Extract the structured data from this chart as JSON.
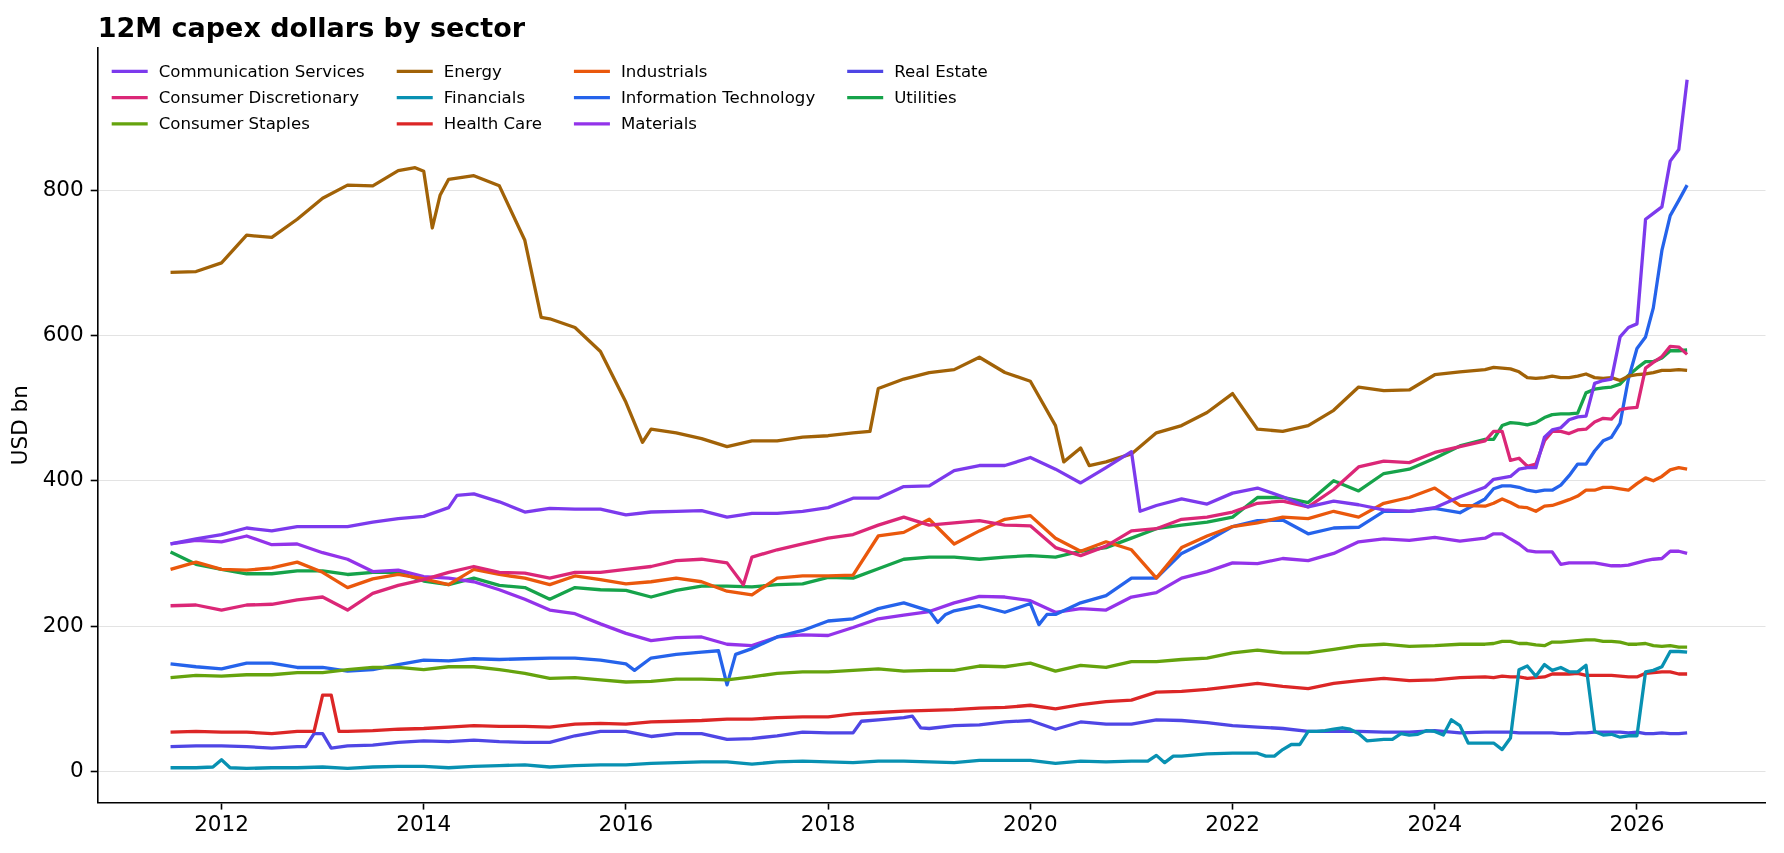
{
  "chart_data": {
    "type": "line",
    "title": "12M capex dollars by sector",
    "ylabel": "USD bn",
    "xlim": [
      "2010-10-11",
      "2027-04-10"
    ],
    "xticks": [
      "2012",
      "2014",
      "2016",
      "2018",
      "2020",
      "2022",
      "2024",
      "2026"
    ],
    "ylim": [
      -43,
      996
    ],
    "yticks": [
      0,
      200,
      400,
      600,
      800
    ],
    "grid": "y",
    "legend": "top left",
    "x": [
      "2011-07",
      "2011-10",
      "2012-01",
      "2012-04",
      "2012-07",
      "2012-10",
      "2013-01",
      "2013-04",
      "2013-07",
      "2013-10",
      "2014-01",
      "2014-04",
      "2014-07",
      "2014-10",
      "2015-01",
      "2015-04",
      "2015-07",
      "2015-10",
      "2016-01",
      "2016-04",
      "2016-07",
      "2016-10",
      "2017-01",
      "2017-04",
      "2017-07",
      "2017-10",
      "2018-01",
      "2018-04",
      "2018-07",
      "2018-10",
      "2019-01",
      "2019-04",
      "2019-07",
      "2019-10",
      "2020-01",
      "2020-04",
      "2020-07",
      "2020-10",
      "2021-01",
      "2021-04",
      "2021-07",
      "2021-10",
      "2022-01",
      "2022-04",
      "2022-07",
      "2022-10",
      "2023-01",
      "2023-04",
      "2023-07",
      "2023-10",
      "2024-01",
      "2024-04",
      "2024-07",
      "2024-08",
      "2024-09",
      "2024-10",
      "2024-11",
      "2024-12",
      "2025-01",
      "2025-02",
      "2025-03",
      "2025-04",
      "2025-05",
      "2025-06",
      "2025-07",
      "2025-08",
      "2025-09",
      "2025-10",
      "2025-11",
      "2025-12",
      "2026-01",
      "2026-02",
      "2026-03",
      "2026-04",
      "2026-05",
      "2026-06",
      "2026-07"
    ],
    "series": [
      {
        "name": "Communication Services",
        "color": "#7c3aed",
        "x": [
          "2011-07",
          "2011-10",
          "2012-01",
          "2012-04",
          "2012-07",
          "2012-10",
          "2013-01",
          "2013-04",
          "2013-07",
          "2013-10",
          "2014-01",
          "2014-04",
          "2014-05",
          "2014-07",
          "2014-10",
          "2015-01",
          "2015-04",
          "2015-07",
          "2015-10",
          "2016-01",
          "2016-04",
          "2016-07",
          "2016-10",
          "2017-01",
          "2017-04",
          "2017-07",
          "2017-10",
          "2018-01",
          "2018-04",
          "2018-07",
          "2018-10",
          "2019-01",
          "2019-04",
          "2019-07",
          "2019-10",
          "2020-01",
          "2020-04",
          "2020-07",
          "2020-10",
          "2021-01",
          "2021-02",
          "2021-04",
          "2021-07",
          "2021-10",
          "2022-01",
          "2022-04",
          "2022-07",
          "2022-10",
          "2023-01",
          "2023-04",
          "2023-07",
          "2023-10",
          "2024-01",
          "2024-04",
          "2024-07",
          "2024-08",
          "2024-09",
          "2024-10",
          "2024-11",
          "2024-12",
          "2025-01",
          "2025-02",
          "2025-03",
          "2025-04",
          "2025-05",
          "2025-06",
          "2025-07",
          "2025-08",
          "2025-09",
          "2025-10",
          "2025-11",
          "2025-12",
          "2026-01",
          "2026-02",
          "2026-03",
          "2026-04",
          "2026-05",
          "2026-06",
          "2026-07"
        ],
        "values": [
          313,
          320,
          326,
          335,
          331,
          337,
          337,
          337,
          343,
          348,
          351,
          363,
          380,
          382,
          371,
          357,
          362,
          361,
          361,
          353,
          357,
          358,
          359,
          350,
          355,
          355,
          358,
          363,
          376,
          376,
          392,
          393,
          414,
          421,
          421,
          432,
          416,
          397,
          418,
          440,
          358,
          366,
          375,
          368,
          383,
          390,
          378,
          364,
          372,
          367,
          360,
          358,
          363,
          378,
          391,
          402,
          404,
          406,
          416,
          418,
          418,
          460,
          470,
          473,
          484,
          488,
          489,
          534,
          538,
          540,
          598,
          611,
          616,
          760,
          768,
          777,
          840,
          856,
          952
        ]
      },
      {
        "name": "Consumer Discretionary",
        "color": "#db2777",
        "x": [
          "2011-07",
          "2011-10",
          "2012-01",
          "2012-04",
          "2012-07",
          "2012-10",
          "2013-01",
          "2013-04",
          "2013-07",
          "2013-10",
          "2014-01",
          "2014-04",
          "2014-07",
          "2014-10",
          "2015-01",
          "2015-04",
          "2015-07",
          "2015-10",
          "2016-01",
          "2016-04",
          "2016-07",
          "2016-10",
          "2017-01",
          "2017-03",
          "2017-04",
          "2017-07",
          "2017-10",
          "2018-01",
          "2018-04",
          "2018-07",
          "2018-10",
          "2019-01",
          "2019-04",
          "2019-07",
          "2019-10",
          "2020-01",
          "2020-04",
          "2020-07",
          "2020-10",
          "2021-01",
          "2021-04",
          "2021-07",
          "2021-10",
          "2022-01",
          "2022-04",
          "2022-07",
          "2022-10",
          "2023-01",
          "2023-04",
          "2023-07",
          "2023-10",
          "2024-01",
          "2024-04",
          "2024-07",
          "2024-08",
          "2024-09",
          "2024-10",
          "2024-11",
          "2024-12",
          "2025-01",
          "2025-02",
          "2025-03",
          "2025-04",
          "2025-05",
          "2025-06",
          "2025-07",
          "2025-08",
          "2025-09",
          "2025-10",
          "2025-11",
          "2025-12",
          "2026-01",
          "2026-02",
          "2026-03",
          "2026-04",
          "2026-05",
          "2026-06",
          "2026-07"
        ],
        "values": [
          228,
          229,
          222,
          229,
          230,
          236,
          240,
          222,
          245,
          256,
          264,
          274,
          282,
          274,
          273,
          266,
          274,
          274,
          278,
          282,
          290,
          292,
          287,
          257,
          295,
          305,
          313,
          321,
          326,
          339,
          350,
          339,
          342,
          345,
          339,
          338,
          308,
          297,
          310,
          331,
          334,
          347,
          350,
          357,
          369,
          372,
          364,
          388,
          419,
          427,
          425,
          439,
          447,
          455,
          468,
          468,
          428,
          431,
          420,
          423,
          455,
          468,
          468,
          465,
          470,
          471,
          481,
          486,
          485,
          498,
          500,
          501,
          555,
          563,
          571,
          585,
          584,
          574
        ]
      },
      {
        "name": "Consumer Staples",
        "color": "#65a30d",
        "values": [
          129,
          132,
          131,
          133,
          133,
          136,
          136,
          140,
          143,
          143,
          140,
          144,
          144,
          140,
          135,
          128,
          129,
          126,
          123,
          124,
          127,
          127,
          126,
          130,
          135,
          137,
          137,
          139,
          141,
          138,
          139,
          139,
          145,
          144,
          149,
          138,
          146,
          143,
          151,
          151,
          154,
          156,
          163,
          167,
          163,
          163,
          168,
          173,
          175,
          172,
          173,
          175,
          175,
          176,
          179,
          179,
          176,
          176,
          174,
          173,
          178,
          178,
          179,
          180,
          181,
          181,
          179,
          179,
          178,
          175,
          175,
          176,
          173,
          172,
          173,
          171,
          171
        ]
      },
      {
        "name": "Energy",
        "color": "#a16207",
        "x": [
          "2011-07",
          "2011-10",
          "2012-01",
          "2012-04",
          "2012-07",
          "2012-10",
          "2013-01",
          "2013-04",
          "2013-07",
          "2013-10",
          "2013-12",
          "2014-01",
          "2014-02",
          "2014-03",
          "2014-04",
          "2014-07",
          "2014-10",
          "2015-01",
          "2015-03",
          "2015-04",
          "2015-07",
          "2015-10",
          "2016-01",
          "2016-03",
          "2016-04",
          "2016-07",
          "2016-10",
          "2017-01",
          "2017-04",
          "2017-07",
          "2017-10",
          "2018-01",
          "2018-04",
          "2018-06",
          "2018-07",
          "2018-10",
          "2019-01",
          "2019-04",
          "2019-07",
          "2019-10",
          "2020-01",
          "2020-04",
          "2020-05",
          "2020-07",
          "2020-08",
          "2020-10",
          "2021-01",
          "2021-04",
          "2021-07",
          "2021-10",
          "2022-01",
          "2022-04",
          "2022-07",
          "2022-10",
          "2023-01",
          "2023-04",
          "2023-07",
          "2023-10",
          "2024-01",
          "2024-04",
          "2024-07",
          "2024-08",
          "2024-09",
          "2024-10",
          "2024-11",
          "2024-12",
          "2025-01",
          "2025-02",
          "2025-03",
          "2025-04",
          "2025-05",
          "2025-06",
          "2025-07",
          "2025-08",
          "2025-09",
          "2025-10",
          "2025-11",
          "2025-12",
          "2026-01",
          "2026-02",
          "2026-03",
          "2026-04",
          "2026-05",
          "2026-06",
          "2026-07"
        ],
        "values": [
          687,
          688,
          700,
          738,
          735,
          760,
          789,
          807,
          806,
          827,
          831,
          826,
          748,
          793,
          815,
          820,
          806,
          731,
          625,
          623,
          611,
          578,
          508,
          453,
          471,
          466,
          458,
          447,
          455,
          455,
          460,
          462,
          466,
          468,
          527,
          540,
          549,
          553,
          570,
          549,
          537,
          476,
          426,
          445,
          421,
          426,
          437,
          466,
          476,
          494,
          520,
          471,
          468,
          476,
          497,
          529,
          524,
          525,
          546,
          550,
          553,
          556,
          555,
          554,
          550,
          542,
          541,
          542,
          544,
          542,
          542,
          544,
          547,
          542,
          541,
          542,
          538,
          544,
          546,
          547,
          549,
          552,
          552,
          553,
          552
        ]
      },
      {
        "name": "Financials",
        "color": "#0891b2",
        "x": [
          "2011-07",
          "2011-10",
          "2011-12",
          "2012-01",
          "2012-02",
          "2012-04",
          "2012-07",
          "2012-10",
          "2013-01",
          "2013-04",
          "2013-07",
          "2013-10",
          "2014-01",
          "2014-04",
          "2014-07",
          "2014-10",
          "2015-01",
          "2015-04",
          "2015-07",
          "2015-10",
          "2016-01",
          "2016-04",
          "2016-07",
          "2016-10",
          "2017-01",
          "2017-04",
          "2017-07",
          "2017-10",
          "2018-01",
          "2018-04",
          "2018-07",
          "2018-10",
          "2019-01",
          "2019-04",
          "2019-07",
          "2019-10",
          "2020-01",
          "2020-04",
          "2020-07",
          "2020-10",
          "2021-01",
          "2021-03",
          "2021-04",
          "2021-05",
          "2021-06",
          "2021-07",
          "2021-10",
          "2022-01",
          "2022-04",
          "2022-05",
          "2022-06",
          "2022-07",
          "2022-08",
          "2022-09",
          "2022-10",
          "2022-11",
          "2022-12",
          "2023-01",
          "2023-02",
          "2023-03",
          "2023-04",
          "2023-05",
          "2023-06",
          "2023-07",
          "2023-08",
          "2023-09",
          "2023-10",
          "2023-11",
          "2023-12",
          "2024-01",
          "2024-02",
          "2024-03",
          "2024-04",
          "2024-05",
          "2024-06",
          "2024-07",
          "2024-08",
          "2024-09",
          "2024-10",
          "2024-11",
          "2024-12",
          "2025-01",
          "2025-02",
          "2025-03",
          "2025-04",
          "2025-05",
          "2025-06",
          "2025-07",
          "2025-08",
          "2025-09",
          "2025-10",
          "2025-11",
          "2025-12",
          "2026-01",
          "2026-02",
          "2026-03",
          "2026-04",
          "2026-05",
          "2026-06",
          "2026-07"
        ],
        "values": [
          5,
          5,
          6,
          16,
          5,
          4,
          5,
          5,
          6,
          4,
          6,
          7,
          7,
          5,
          7,
          8,
          9,
          6,
          8,
          9,
          9,
          11,
          12,
          13,
          13,
          10,
          13,
          14,
          13,
          12,
          14,
          14,
          13,
          12,
          15,
          15,
          15,
          11,
          14,
          13,
          14,
          14,
          22,
          12,
          21,
          21,
          24,
          25,
          25,
          21,
          21,
          30,
          37,
          37,
          55,
          55,
          56,
          58,
          60,
          58,
          52,
          42,
          43,
          44,
          44,
          52,
          50,
          51,
          56,
          55,
          50,
          71,
          63,
          39,
          39,
          39,
          39,
          30,
          46,
          140,
          145,
          131,
          147,
          139,
          143,
          137,
          137,
          146,
          55,
          50,
          51,
          47,
          49,
          49,
          137,
          139,
          144,
          165,
          165,
          164
        ]
      },
      {
        "name": "Health Care",
        "color": "#dc2626",
        "x": [
          "2011-07",
          "2011-10",
          "2012-01",
          "2012-04",
          "2012-07",
          "2012-10",
          "2012-12",
          "2013-01",
          "2013-02",
          "2013-03",
          "2013-04",
          "2013-07",
          "2013-10",
          "2014-01",
          "2014-04",
          "2014-07",
          "2014-10",
          "2015-01",
          "2015-04",
          "2015-07",
          "2015-10",
          "2016-01",
          "2016-04",
          "2016-07",
          "2016-10",
          "2017-01",
          "2017-04",
          "2017-07",
          "2017-10",
          "2018-01",
          "2018-04",
          "2018-07",
          "2018-10",
          "2019-01",
          "2019-04",
          "2019-07",
          "2019-10",
          "2020-01",
          "2020-04",
          "2020-07",
          "2020-10",
          "2021-01",
          "2021-04",
          "2021-07",
          "2021-10",
          "2022-01",
          "2022-04",
          "2022-07",
          "2022-10",
          "2023-01",
          "2023-04",
          "2023-07",
          "2023-10",
          "2024-01",
          "2024-04",
          "2024-07",
          "2024-08",
          "2024-09",
          "2024-10",
          "2024-11",
          "2024-12",
          "2025-01",
          "2025-02",
          "2025-03",
          "2025-04",
          "2025-05",
          "2025-06",
          "2025-07",
          "2025-08",
          "2025-09",
          "2025-10",
          "2025-11",
          "2025-12",
          "2026-01",
          "2026-02",
          "2026-03",
          "2026-04",
          "2026-05",
          "2026-06",
          "2026-07"
        ],
        "values": [
          54,
          55,
          54,
          54,
          52,
          55,
          55,
          105,
          105,
          55,
          55,
          56,
          58,
          59,
          61,
          63,
          62,
          62,
          61,
          65,
          66,
          65,
          68,
          69,
          70,
          72,
          72,
          74,
          75,
          75,
          79,
          81,
          83,
          84,
          85,
          87,
          88,
          91,
          86,
          92,
          96,
          98,
          109,
          110,
          113,
          117,
          121,
          117,
          114,
          121,
          125,
          128,
          125,
          126,
          129,
          130,
          129,
          131,
          130,
          130,
          128,
          129,
          130,
          134,
          134,
          134,
          135,
          132,
          132,
          132,
          132,
          131,
          130,
          130,
          135,
          136,
          137,
          137,
          134,
          134
        ]
      },
      {
        "name": "Industrials",
        "color": "#ea580c",
        "values": [
          278,
          288,
          278,
          277,
          280,
          288,
          274,
          253,
          265,
          271,
          265,
          257,
          278,
          271,
          266,
          257,
          269,
          264,
          258,
          261,
          266,
          261,
          248,
          243,
          266,
          269,
          269,
          270,
          324,
          329,
          347,
          313,
          331,
          347,
          352,
          321,
          303,
          316,
          305,
          266,
          308,
          324,
          337,
          342,
          350,
          348,
          358,
          350,
          369,
          377,
          390,
          366,
          365,
          369,
          375,
          370,
          364,
          363,
          358,
          365,
          366,
          370,
          374,
          379,
          387,
          387,
          391,
          391,
          389,
          387,
          396,
          404,
          400,
          406,
          415,
          418,
          416
        ]
      },
      {
        "name": "Information Technology",
        "color": "#2563eb",
        "x": [
          "2011-07",
          "2011-10",
          "2012-01",
          "2012-04",
          "2012-07",
          "2012-10",
          "2013-01",
          "2013-04",
          "2013-07",
          "2013-10",
          "2014-01",
          "2014-04",
          "2014-07",
          "2014-10",
          "2015-01",
          "2015-04",
          "2015-07",
          "2015-10",
          "2016-01",
          "2016-02",
          "2016-04",
          "2016-07",
          "2016-10",
          "2016-12",
          "2017-01",
          "2017-02",
          "2017-04",
          "2017-07",
          "2017-10",
          "2018-01",
          "2018-04",
          "2018-07",
          "2018-10",
          "2019-01",
          "2019-02",
          "2019-03",
          "2019-04",
          "2019-07",
          "2019-10",
          "2020-01",
          "2020-02",
          "2020-03",
          "2020-04",
          "2020-07",
          "2020-10",
          "2021-01",
          "2021-04",
          "2021-07",
          "2021-10",
          "2022-01",
          "2022-04",
          "2022-07",
          "2022-10",
          "2023-01",
          "2023-04",
          "2023-07",
          "2023-10",
          "2024-01",
          "2024-04",
          "2024-07",
          "2024-08",
          "2024-09",
          "2024-10",
          "2024-11",
          "2024-12",
          "2025-01",
          "2025-02",
          "2025-03",
          "2025-04",
          "2025-05",
          "2025-06",
          "2025-07",
          "2025-08",
          "2025-09",
          "2025-10",
          "2025-11",
          "2025-12",
          "2026-01",
          "2026-02",
          "2026-03",
          "2026-04",
          "2026-05",
          "2026-06",
          "2026-07"
        ],
        "values": [
          148,
          144,
          141,
          149,
          149,
          143,
          143,
          138,
          140,
          147,
          153,
          152,
          155,
          154,
          155,
          156,
          156,
          153,
          148,
          139,
          156,
          161,
          164,
          166,
          119,
          161,
          169,
          185,
          194,
          207,
          210,
          224,
          232,
          221,
          205,
          216,
          221,
          228,
          219,
          231,
          202,
          216,
          216,
          232,
          242,
          266,
          266,
          300,
          317,
          337,
          345,
          346,
          327,
          335,
          336,
          358,
          358,
          362,
          356,
          375,
          389,
          393,
          393,
          391,
          387,
          385,
          387,
          387,
          394,
          407,
          423,
          423,
          441,
          455,
          460,
          479,
          540,
          582,
          598,
          638,
          717,
          765,
          786,
          807
        ]
      },
      {
        "name": "Materials",
        "color": "#9333ea",
        "values": [
          313,
          318,
          316,
          324,
          312,
          313,
          301,
          292,
          275,
          277,
          268,
          266,
          261,
          250,
          237,
          222,
          217,
          203,
          190,
          180,
          184,
          185,
          175,
          173,
          185,
          188,
          187,
          198,
          210,
          215,
          220,
          232,
          241,
          240,
          235,
          219,
          224,
          222,
          240,
          246,
          266,
          275,
          287,
          286,
          293,
          290,
          300,
          316,
          320,
          318,
          322,
          317,
          321,
          327,
          327,
          320,
          313,
          304,
          302,
          302,
          302,
          285,
          287,
          287,
          287,
          287,
          285,
          283,
          283,
          284,
          287,
          290,
          292,
          293,
          303,
          303,
          300
        ]
      },
      {
        "name": "Real Estate",
        "color": "#4f46e5",
        "x": [
          "2011-07",
          "2011-10",
          "2012-01",
          "2012-04",
          "2012-07",
          "2012-10",
          "2012-11",
          "2012-12",
          "2013-01",
          "2013-02",
          "2013-04",
          "2013-07",
          "2013-10",
          "2014-01",
          "2014-04",
          "2014-07",
          "2014-10",
          "2015-01",
          "2015-04",
          "2015-07",
          "2015-10",
          "2016-01",
          "2016-04",
          "2016-07",
          "2016-10",
          "2017-01",
          "2017-04",
          "2017-07",
          "2017-10",
          "2018-01",
          "2018-04",
          "2018-05",
          "2018-07",
          "2018-10",
          "2018-11",
          "2018-12",
          "2019-01",
          "2019-04",
          "2019-07",
          "2019-10",
          "2020-01",
          "2020-04",
          "2020-07",
          "2020-10",
          "2021-01",
          "2021-04",
          "2021-07",
          "2021-10",
          "2022-01",
          "2022-04",
          "2022-07",
          "2022-10",
          "2023-01",
          "2023-04",
          "2023-07",
          "2023-10",
          "2024-01",
          "2024-04",
          "2024-07",
          "2024-08",
          "2024-09",
          "2024-10",
          "2024-11",
          "2024-12",
          "2025-01",
          "2025-02",
          "2025-03",
          "2025-04",
          "2025-05",
          "2025-06",
          "2025-07",
          "2025-08",
          "2025-09",
          "2025-10",
          "2025-11",
          "2025-12",
          "2026-01",
          "2026-02",
          "2026-03",
          "2026-04",
          "2026-05",
          "2026-06",
          "2026-07"
        ],
        "values": [
          34,
          35,
          35,
          34,
          32,
          34,
          34,
          52,
          52,
          32,
          35,
          36,
          40,
          42,
          41,
          43,
          41,
          40,
          40,
          49,
          55,
          55,
          48,
          52,
          52,
          44,
          45,
          49,
          54,
          53,
          53,
          69,
          71,
          74,
          76,
          60,
          59,
          63,
          64,
          68,
          70,
          58,
          68,
          65,
          65,
          71,
          70,
          67,
          63,
          61,
          59,
          55,
          55,
          55,
          54,
          54,
          56,
          53,
          54,
          54,
          54,
          54,
          53,
          53,
          53,
          53,
          53,
          52,
          52,
          53,
          53,
          54,
          54,
          54,
          54,
          53,
          54,
          52,
          52,
          53,
          52,
          52,
          53
        ]
      },
      {
        "name": "Utilities",
        "color": "#16a34a",
        "values": [
          302,
          285,
          278,
          272,
          272,
          276,
          276,
          271,
          274,
          274,
          262,
          257,
          266,
          256,
          253,
          237,
          253,
          250,
          249,
          240,
          249,
          255,
          255,
          254,
          257,
          258,
          267,
          266,
          279,
          292,
          295,
          295,
          292,
          295,
          297,
          295,
          303,
          308,
          321,
          334,
          339,
          343,
          350,
          377,
          377,
          370,
          400,
          386,
          410,
          416,
          431,
          448,
          457,
          457,
          476,
          480,
          479,
          477,
          480,
          487,
          491,
          492,
          492,
          493,
          521,
          526,
          528,
          529,
          533,
          545,
          555,
          564,
          564,
          569,
          579,
          579,
          580
        ]
      }
    ]
  }
}
